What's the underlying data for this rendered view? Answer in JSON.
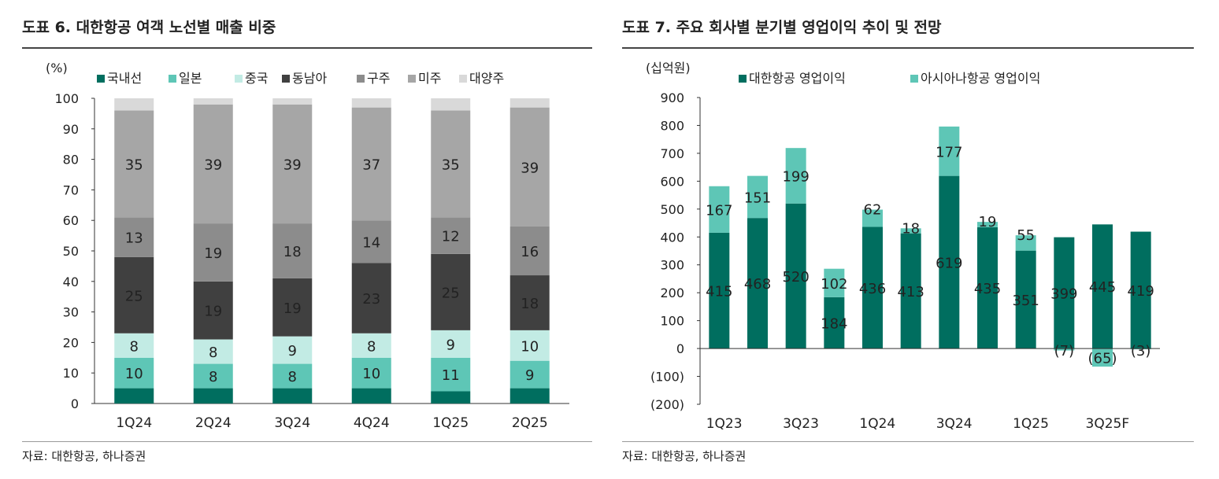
{
  "left": {
    "title": "도표 6. 대한항공 여객 노선별 매출 비중",
    "source": "자료: 대한항공, 하나증권",
    "chart_data": {
      "type": "bar",
      "stacked": true,
      "unit_label": "(%)",
      "categories": [
        "1Q24",
        "2Q24",
        "3Q24",
        "4Q24",
        "1Q25",
        "2Q25"
      ],
      "ylim": [
        0,
        100
      ],
      "yticks": [
        0,
        10,
        20,
        30,
        40,
        50,
        60,
        70,
        80,
        90,
        100
      ],
      "legend_position": "top",
      "series": [
        {
          "name": "국내선",
          "color": "#006e5f",
          "values": [
            5,
            5,
            5,
            5,
            4,
            5
          ],
          "labels": [
            "",
            "",
            "",
            "",
            "",
            ""
          ]
        },
        {
          "name": "일본",
          "color": "#5ec6b6",
          "values": [
            10,
            8,
            8,
            10,
            11,
            9
          ],
          "labels": [
            "10",
            "8",
            "8",
            "10",
            "11",
            "9"
          ]
        },
        {
          "name": "중국",
          "color": "#c2ebe4",
          "values": [
            8,
            8,
            9,
            8,
            9,
            10
          ],
          "labels": [
            "8",
            "8",
            "9",
            "8",
            "9",
            "10"
          ]
        },
        {
          "name": "동남아",
          "color": "#404040",
          "values": [
            25,
            19,
            19,
            23,
            25,
            18
          ],
          "labels": [
            "25",
            "19",
            "19",
            "23",
            "25",
            "18"
          ]
        },
        {
          "name": "구주",
          "color": "#8c8c8c",
          "values": [
            13,
            19,
            18,
            14,
            12,
            16
          ],
          "labels": [
            "13",
            "19",
            "18",
            "14",
            "12",
            "16"
          ]
        },
        {
          "name": "미주",
          "color": "#a6a6a6",
          "values": [
            35,
            39,
            39,
            37,
            35,
            39
          ],
          "labels": [
            "35",
            "39",
            "39",
            "37",
            "35",
            "39"
          ]
        },
        {
          "name": "대양주",
          "color": "#d9d9d9",
          "values": [
            4,
            2,
            2,
            3,
            4,
            3
          ],
          "labels": [
            "",
            "",
            "",
            "",
            "",
            ""
          ]
        }
      ]
    }
  },
  "right": {
    "title": "도표 7. 주요 회사별 분기별 영업이익 추이 및 전망",
    "source": "자료: 대한항공, 하나증권",
    "chart_data": {
      "type": "bar",
      "stacked": true,
      "unit_label": "(십억원)",
      "categories": [
        "1Q23",
        "2Q23",
        "3Q23",
        "4Q23",
        "1Q24",
        "2Q24",
        "3Q24",
        "4Q24",
        "1Q25",
        "2Q25",
        "3Q25F",
        "4Q25F"
      ],
      "tick_labels": [
        "1Q23",
        "",
        "3Q23",
        "",
        "1Q24",
        "",
        "3Q24",
        "",
        "1Q25",
        "",
        "3Q25F",
        ""
      ],
      "ylim": [
        -200,
        900
      ],
      "yticks": [
        -200,
        -100,
        0,
        100,
        200,
        300,
        400,
        500,
        600,
        700,
        800,
        900
      ],
      "ytick_labels": [
        "(200)",
        "(100)",
        "0",
        "100",
        "200",
        "300",
        "400",
        "500",
        "600",
        "700",
        "800",
        "900"
      ],
      "legend_position": "top",
      "series": [
        {
          "name": "대한항공 영업이익",
          "color": "#006e5f",
          "values": [
            415,
            468,
            520,
            184,
            436,
            413,
            619,
            435,
            351,
            399,
            445,
            419
          ],
          "labels": [
            "415",
            "468",
            "520",
            "184",
            "436",
            "413",
            "619",
            "435",
            "351",
            "399",
            "445",
            "419"
          ]
        },
        {
          "name": "아시아나항공 영업이익",
          "color": "#5ec6b6",
          "values": [
            167,
            151,
            199,
            102,
            62,
            18,
            177,
            19,
            55,
            -7,
            -65,
            -3
          ],
          "labels": [
            "167",
            "151",
            "199",
            "102",
            "62",
            "18",
            "177",
            "19",
            "55",
            "(7)",
            "(65)",
            "(3)"
          ]
        }
      ]
    }
  }
}
